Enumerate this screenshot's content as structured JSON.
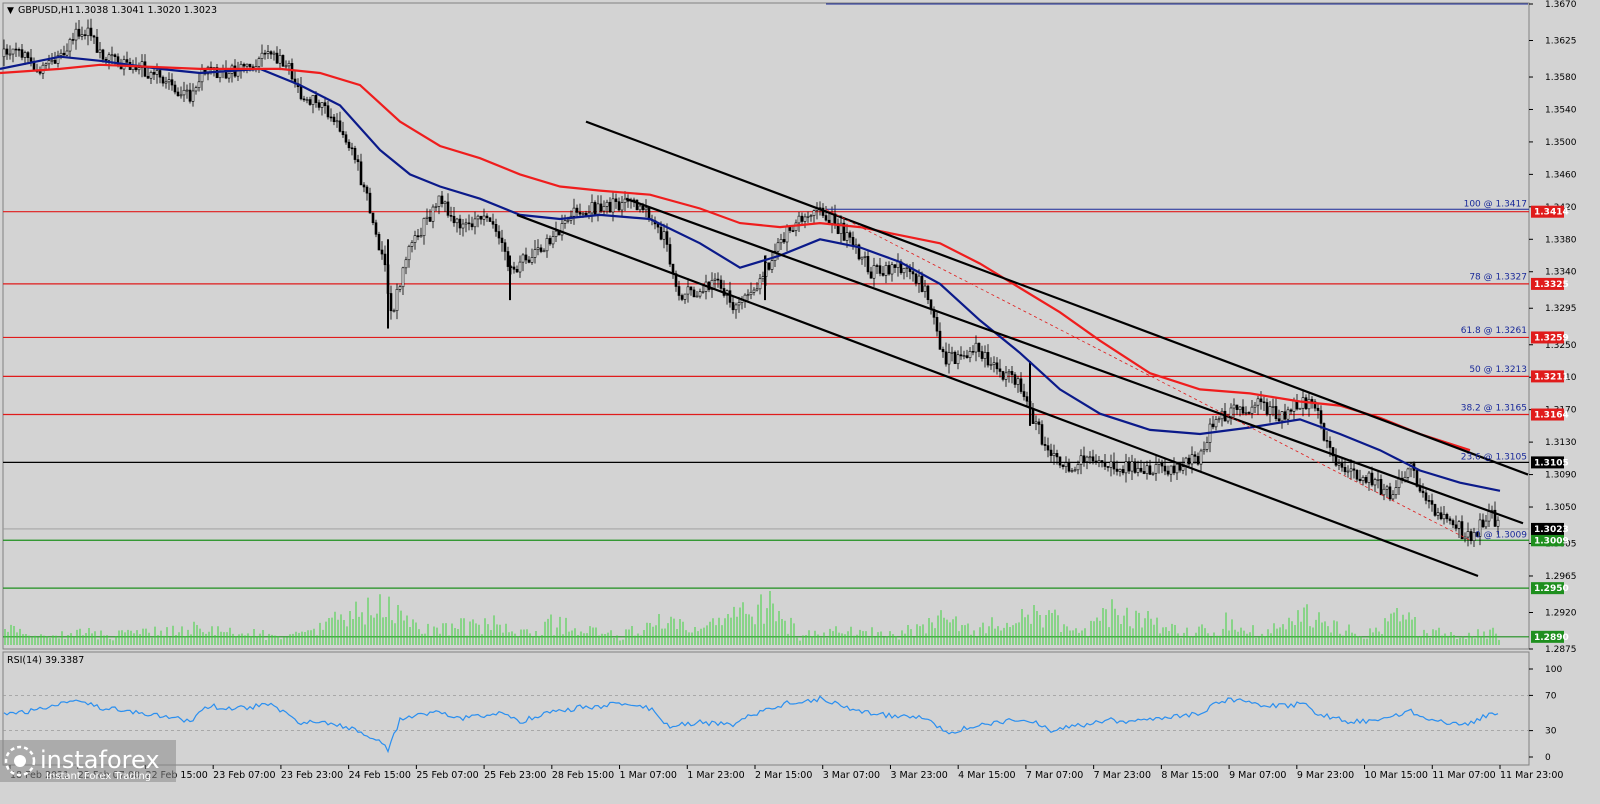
{
  "header": {
    "symbol": "GBPUSD,H1",
    "ohlc": "1.3038 1.3041 1.3020 1.3023",
    "triangle_glyph": "▼"
  },
  "rsi_panel": {
    "title": "RSI(14) 39.3387",
    "levels": [
      100,
      70,
      30,
      0
    ],
    "line_color": "#2a8ff0"
  },
  "watermark": {
    "brand": "instaforex",
    "tagline": "Instant Forex Trading"
  },
  "colors": {
    "background": "#d3d3d3",
    "bull_candle": "#000000",
    "bear_candle": "#000000",
    "ma_fast": "#0b1a8a",
    "ma_slow": "#ef1d1d",
    "support_line": "#1e8f1e",
    "resistance_line": "#e01b1b",
    "pivot_line": "#000000",
    "volume": "#3dd33d",
    "channel": "#000000"
  },
  "chart_data": {
    "type": "line",
    "title": "",
    "instrument": "GBPUSD,H1",
    "ylim": [
      1.2875,
      1.367
    ],
    "y_ticks": [
      1.367,
      1.3625,
      1.358,
      1.354,
      1.35,
      1.346,
      1.342,
      1.338,
      1.334,
      1.3295,
      1.325,
      1.321,
      1.317,
      1.313,
      1.309,
      1.305,
      1.3005,
      1.2965,
      1.292,
      1.2875
    ],
    "x_labels": [
      "18 Feb 2021",
      "22 Feb 07:00",
      "22 Feb 15:00",
      "23 Feb 07:00",
      "23 Feb 23:00",
      "24 Feb 15:00",
      "25 Feb 07:00",
      "25 Feb 23:00",
      "28 Feb 15:00",
      "1 Mar 07:00",
      "1 Mar 23:00",
      "2 Mar 15:00",
      "3 Mar 07:00",
      "3 Mar 23:00",
      "4 Mar 15:00",
      "7 Mar 07:00",
      "7 Mar 23:00",
      "8 Mar 15:00",
      "9 Mar 07:00",
      "9 Mar 23:00",
      "10 Mar 15:00",
      "11 Mar 07:00",
      "11 Mar 23:00"
    ],
    "price_path": [
      [
        0,
        1.3605
      ],
      [
        20,
        1.361
      ],
      [
        40,
        1.359
      ],
      [
        60,
        1.361
      ],
      [
        80,
        1.3635
      ],
      [
        92,
        1.363
      ],
      [
        105,
        1.36
      ],
      [
        130,
        1.3598
      ],
      [
        150,
        1.3585
      ],
      [
        170,
        1.357
      ],
      [
        190,
        1.3555
      ],
      [
        205,
        1.359
      ],
      [
        230,
        1.3585
      ],
      [
        255,
        1.3595
      ],
      [
        268,
        1.361
      ],
      [
        285,
        1.36
      ],
      [
        300,
        1.356
      ],
      [
        320,
        1.3545
      ],
      [
        340,
        1.352
      ],
      [
        355,
        1.348
      ],
      [
        370,
        1.342
      ],
      [
        385,
        1.3345
      ],
      [
        390,
        1.328
      ],
      [
        410,
        1.337
      ],
      [
        440,
        1.343
      ],
      [
        460,
        1.339
      ],
      [
        490,
        1.341
      ],
      [
        510,
        1.334
      ],
      [
        530,
        1.336
      ],
      [
        550,
        1.338
      ],
      [
        570,
        1.341
      ],
      [
        600,
        1.342
      ],
      [
        640,
        1.3425
      ],
      [
        665,
        1.338
      ],
      [
        678,
        1.331
      ],
      [
        700,
        1.332
      ],
      [
        720,
        1.3325
      ],
      [
        735,
        1.329
      ],
      [
        760,
        1.333
      ],
      [
        790,
        1.3395
      ],
      [
        822,
        1.3415
      ],
      [
        850,
        1.338
      ],
      [
        870,
        1.334
      ],
      [
        900,
        1.3345
      ],
      [
        925,
        1.332
      ],
      [
        945,
        1.323
      ],
      [
        975,
        1.3245
      ],
      [
        1000,
        1.3215
      ],
      [
        1020,
        1.32
      ],
      [
        1030,
        1.317
      ],
      [
        1050,
        1.311
      ],
      [
        1070,
        1.31
      ],
      [
        1095,
        1.311
      ],
      [
        1115,
        1.3095
      ],
      [
        1140,
        1.31
      ],
      [
        1170,
        1.3095
      ],
      [
        1200,
        1.311
      ],
      [
        1215,
        1.316
      ],
      [
        1240,
        1.317
      ],
      [
        1260,
        1.3175
      ],
      [
        1280,
        1.316
      ],
      [
        1300,
        1.318
      ],
      [
        1315,
        1.3175
      ],
      [
        1330,
        1.3115
      ],
      [
        1350,
        1.309
      ],
      [
        1370,
        1.3085
      ],
      [
        1390,
        1.3065
      ],
      [
        1410,
        1.31
      ],
      [
        1430,
        1.305
      ],
      [
        1450,
        1.3035
      ],
      [
        1470,
        1.3009
      ],
      [
        1490,
        1.3045
      ],
      [
        1500,
        1.3023
      ]
    ],
    "series": [
      {
        "values": [
          [
            0,
            1.359
          ],
          [
            60,
            1.3605
          ],
          [
            100,
            1.36
          ],
          [
            160,
            1.359
          ],
          [
            200,
            1.3585
          ],
          [
            260,
            1.359
          ],
          [
            300,
            1.357
          ],
          [
            340,
            1.3545
          ],
          [
            380,
            1.349
          ],
          [
            410,
            1.346
          ],
          [
            440,
            1.3445
          ],
          [
            480,
            1.343
          ],
          [
            520,
            1.341
          ],
          [
            560,
            1.3405
          ],
          [
            600,
            1.341
          ],
          [
            650,
            1.3405
          ],
          [
            700,
            1.3375
          ],
          [
            740,
            1.3345
          ],
          [
            780,
            1.336
          ],
          [
            820,
            1.338
          ],
          [
            860,
            1.337
          ],
          [
            900,
            1.3352
          ],
          [
            940,
            1.3325
          ],
          [
            980,
            1.328
          ],
          [
            1020,
            1.324
          ],
          [
            1060,
            1.3195
          ],
          [
            1100,
            1.3165
          ],
          [
            1150,
            1.3145
          ],
          [
            1200,
            1.314
          ],
          [
            1250,
            1.3148
          ],
          [
            1300,
            1.3158
          ],
          [
            1340,
            1.314
          ],
          [
            1380,
            1.312
          ],
          [
            1420,
            1.3095
          ],
          [
            1460,
            1.308
          ],
          [
            1500,
            1.307
          ]
        ]
      },
      {
        "values": [
          [
            0,
            1.3585
          ],
          [
            60,
            1.359
          ],
          [
            100,
            1.3595
          ],
          [
            200,
            1.359
          ],
          [
            280,
            1.359
          ],
          [
            320,
            1.3585
          ],
          [
            360,
            1.357
          ],
          [
            400,
            1.3525
          ],
          [
            440,
            1.3495
          ],
          [
            480,
            1.348
          ],
          [
            520,
            1.346
          ],
          [
            560,
            1.3445
          ],
          [
            600,
            1.344
          ],
          [
            650,
            1.3435
          ],
          [
            700,
            1.3418
          ],
          [
            740,
            1.34
          ],
          [
            780,
            1.3395
          ],
          [
            820,
            1.34
          ],
          [
            860,
            1.3395
          ],
          [
            900,
            1.3385
          ],
          [
            940,
            1.3375
          ],
          [
            980,
            1.335
          ],
          [
            1020,
            1.332
          ],
          [
            1060,
            1.329
          ],
          [
            1100,
            1.3255
          ],
          [
            1150,
            1.3215
          ],
          [
            1200,
            1.3195
          ],
          [
            1250,
            1.319
          ],
          [
            1300,
            1.318
          ],
          [
            1340,
            1.3175
          ],
          [
            1380,
            1.316
          ],
          [
            1420,
            1.314
          ],
          [
            1470,
            1.312
          ]
        ]
      }
    ],
    "horizontal_levels": [
      {
        "value": 1.3414,
        "tag": "1.3414",
        "color": "#e01b1b"
      },
      {
        "value": 1.3325,
        "tag": "1.3325",
        "color": "#e01b1b"
      },
      {
        "value": 1.3259,
        "tag": "1.3259",
        "color": "#e01b1b"
      },
      {
        "value": 1.3211,
        "tag": "1.3211",
        "color": "#e01b1b"
      },
      {
        "value": 1.3164,
        "tag": "1.3164",
        "color": "#e01b1b"
      },
      {
        "value": 1.3105,
        "tag": "1.3105",
        "color": "#000000"
      },
      {
        "value": 1.3009,
        "tag": "1.3009",
        "color": "#1e8f1e"
      },
      {
        "value": 1.295,
        "tag": "1.2950",
        "color": "#1e8f1e"
      },
      {
        "value": 1.289,
        "tag": "1.2890",
        "color": "#1e8f1e"
      }
    ],
    "current_price": {
      "value": 1.3023,
      "tag": "1.3023"
    },
    "fibonacci": [
      {
        "label": "100 @ 1.3417",
        "value": 1.3417
      },
      {
        "label": "78 @ 1.3327",
        "value": 1.3327
      },
      {
        "label": "61.8 @ 1.3261",
        "value": 1.3261
      },
      {
        "label": "50 @ 1.3213",
        "value": 1.3213
      },
      {
        "label": "38.2 @ 1.3165",
        "value": 1.3165
      },
      {
        "label": "23.6 @ 1.3105",
        "value": 1.3105
      },
      {
        "label": "0 @ 1.3009",
        "value": 1.3009
      }
    ],
    "channel_lines": [
      {
        "from": [
          586,
          1.3525
        ],
        "to": [
          1528,
          1.309
        ]
      },
      {
        "from": [
          626,
          1.343
        ],
        "to": [
          1523,
          1.303
        ]
      },
      {
        "from": [
          517,
          1.341
        ],
        "to": [
          1478,
          1.2965
        ]
      }
    ],
    "rsi_path": [
      [
        0,
        48
      ],
      [
        30,
        52
      ],
      [
        60,
        60
      ],
      [
        80,
        66
      ],
      [
        100,
        56
      ],
      [
        130,
        52
      ],
      [
        170,
        46
      ],
      [
        190,
        40
      ],
      [
        205,
        58
      ],
      [
        240,
        55
      ],
      [
        270,
        60
      ],
      [
        300,
        40
      ],
      [
        330,
        38
      ],
      [
        360,
        30
      ],
      [
        380,
        18
      ],
      [
        388,
        8
      ],
      [
        400,
        42
      ],
      [
        440,
        52
      ],
      [
        460,
        44
      ],
      [
        500,
        50
      ],
      [
        520,
        40
      ],
      [
        540,
        48
      ],
      [
        580,
        56
      ],
      [
        620,
        60
      ],
      [
        650,
        55
      ],
      [
        670,
        35
      ],
      [
        700,
        40
      ],
      [
        730,
        36
      ],
      [
        760,
        52
      ],
      [
        790,
        62
      ],
      [
        820,
        66
      ],
      [
        850,
        55
      ],
      [
        880,
        48
      ],
      [
        920,
        46
      ],
      [
        950,
        28
      ],
      [
        975,
        36
      ],
      [
        1000,
        40
      ],
      [
        1030,
        42
      ],
      [
        1050,
        30
      ],
      [
        1080,
        36
      ],
      [
        1110,
        42
      ],
      [
        1140,
        40
      ],
      [
        1170,
        44
      ],
      [
        1200,
        50
      ],
      [
        1220,
        64
      ],
      [
        1240,
        66
      ],
      [
        1260,
        60
      ],
      [
        1290,
        58
      ],
      [
        1300,
        62
      ],
      [
        1320,
        48
      ],
      [
        1350,
        40
      ],
      [
        1380,
        42
      ],
      [
        1410,
        52
      ],
      [
        1440,
        40
      ],
      [
        1470,
        38
      ],
      [
        1490,
        50
      ],
      [
        1500,
        46
      ]
    ],
    "volume_profile": [
      [
        0,
        25
      ],
      [
        40,
        10
      ],
      [
        80,
        18
      ],
      [
        110,
        12
      ],
      [
        170,
        20
      ],
      [
        190,
        22
      ],
      [
        260,
        14
      ],
      [
        300,
        12
      ],
      [
        360,
        45
      ],
      [
        390,
        50
      ],
      [
        420,
        18
      ],
      [
        460,
        25
      ],
      [
        490,
        30
      ],
      [
        520,
        15
      ],
      [
        550,
        28
      ],
      [
        580,
        22
      ],
      [
        620,
        12
      ],
      [
        660,
        30
      ],
      [
        700,
        18
      ],
      [
        740,
        40
      ],
      [
        770,
        55
      ],
      [
        800,
        12
      ],
      [
        830,
        18
      ],
      [
        860,
        22
      ],
      [
        900,
        15
      ],
      [
        940,
        32
      ],
      [
        980,
        20
      ],
      [
        1020,
        38
      ],
      [
        1040,
        45
      ],
      [
        1080,
        12
      ],
      [
        1110,
        42
      ],
      [
        1150,
        35
      ],
      [
        1180,
        15
      ],
      [
        1220,
        22
      ],
      [
        1230,
        40
      ],
      [
        1260,
        12
      ],
      [
        1300,
        38
      ],
      [
        1320,
        44
      ],
      [
        1360,
        10
      ],
      [
        1400,
        36
      ],
      [
        1420,
        22
      ],
      [
        1460,
        10
      ],
      [
        1490,
        18
      ],
      [
        1500,
        12
      ]
    ]
  }
}
